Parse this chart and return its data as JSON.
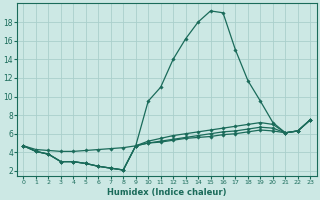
{
  "xlabel": "Humidex (Indice chaleur)",
  "bg_color": "#cce8e4",
  "line_color": "#1a6b5a",
  "grid_color": "#aacfcc",
  "xlim": [
    -0.5,
    23.5
  ],
  "ylim": [
    1.5,
    20.0
  ],
  "xticks": [
    0,
    1,
    2,
    3,
    4,
    5,
    6,
    7,
    8,
    9,
    10,
    11,
    12,
    13,
    14,
    15,
    16,
    17,
    18,
    19,
    20,
    21,
    22,
    23
  ],
  "yticks": [
    2,
    4,
    6,
    8,
    10,
    12,
    14,
    16,
    18
  ],
  "line1_x": [
    0,
    1,
    2,
    3,
    4,
    5,
    6,
    7,
    8,
    9,
    10,
    11,
    12,
    13,
    14,
    15,
    16,
    17,
    18,
    19,
    20,
    21,
    22,
    23
  ],
  "line1_y": [
    4.7,
    4.1,
    3.8,
    3.0,
    3.0,
    2.8,
    2.5,
    2.3,
    2.1,
    4.7,
    9.5,
    11.0,
    14.0,
    16.2,
    18.0,
    19.2,
    19.0,
    15.0,
    11.7,
    9.5,
    7.2,
    6.1,
    6.3,
    7.5
  ],
  "line2_x": [
    0,
    1,
    2,
    3,
    4,
    5,
    6,
    7,
    8,
    9,
    10,
    11,
    12,
    13,
    14,
    15,
    16,
    17,
    18,
    19,
    20,
    21,
    22,
    23
  ],
  "line2_y": [
    4.7,
    4.1,
    3.8,
    3.0,
    3.0,
    2.8,
    2.5,
    2.3,
    2.1,
    4.7,
    5.2,
    5.5,
    5.8,
    6.0,
    6.2,
    6.4,
    6.6,
    6.8,
    7.0,
    7.2,
    7.0,
    6.1,
    6.3,
    7.5
  ],
  "line3_x": [
    0,
    1,
    2,
    3,
    4,
    5,
    6,
    7,
    8,
    9,
    10,
    11,
    12,
    13,
    14,
    15,
    16,
    17,
    18,
    19,
    20,
    21,
    22,
    23
  ],
  "line3_y": [
    4.7,
    4.1,
    3.8,
    3.0,
    3.0,
    2.8,
    2.5,
    2.3,
    2.1,
    4.7,
    5.0,
    5.2,
    5.4,
    5.6,
    5.8,
    6.0,
    6.2,
    6.3,
    6.5,
    6.7,
    6.6,
    6.1,
    6.3,
    7.5
  ],
  "line4_x": [
    0,
    1,
    2,
    3,
    4,
    5,
    6,
    7,
    8,
    9,
    10,
    11,
    12,
    13,
    14,
    15,
    16,
    17,
    18,
    19,
    20,
    21,
    22,
    23
  ],
  "line4_y": [
    4.7,
    4.3,
    4.2,
    4.1,
    4.1,
    4.2,
    4.3,
    4.4,
    4.5,
    4.7,
    5.0,
    5.1,
    5.3,
    5.5,
    5.6,
    5.7,
    5.9,
    6.0,
    6.2,
    6.4,
    6.3,
    6.1,
    6.3,
    7.5
  ],
  "xlabel_fontsize": 6,
  "tick_fontsize_x": 4.5,
  "tick_fontsize_y": 5.5
}
